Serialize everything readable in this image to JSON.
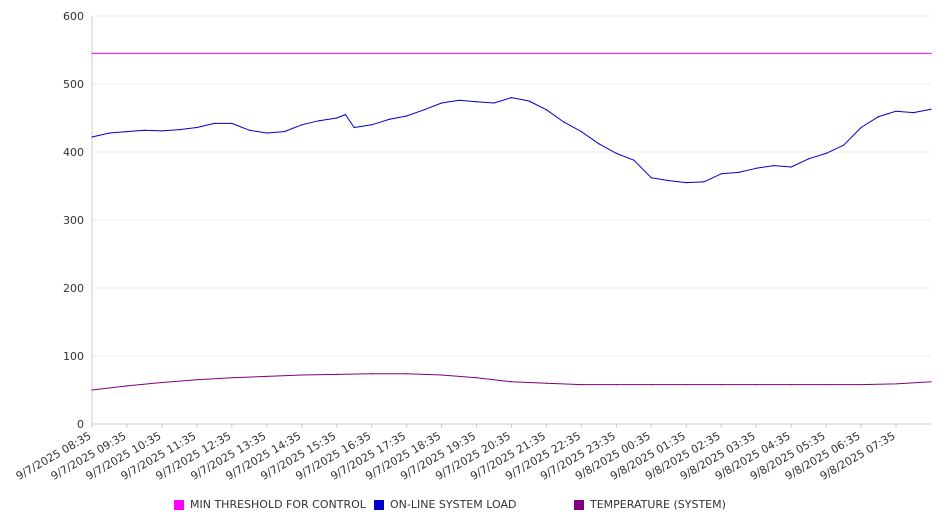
{
  "chart_data": {
    "type": "line",
    "title": "",
    "xlabel": "",
    "ylabel": "",
    "ylim": [
      0,
      600
    ],
    "y_ticks": [
      "0",
      "100",
      "200",
      "300",
      "400",
      "500",
      "600"
    ],
    "x_tick_labels": [
      "9/7/2025 08:35",
      "9/7/2025 09:35",
      "9/7/2025 10:35",
      "9/7/2025 11:35",
      "9/7/2025 12:35",
      "9/7/2025 13:35",
      "9/7/2025 14:35",
      "9/7/2025 15:35",
      "9/7/2025 16:35",
      "9/7/2025 17:35",
      "9/7/2025 18:35",
      "9/7/2025 19:35",
      "9/7/2025 20:35",
      "9/7/2025 21:35",
      "9/7/2025 22:35",
      "9/7/2025 23:35",
      "9/8/2025 00:35",
      "9/8/2025 01:35",
      "9/8/2025 02:35",
      "9/8/2025 03:35",
      "9/8/2025 04:35",
      "9/8/2025 05:35",
      "9/8/2025 06:35",
      "9/8/2025 07:35"
    ],
    "x_range": [
      "9/7/2025 08:35",
      "9/8/2025 08:35"
    ],
    "grid": true,
    "legend_position": "bottom",
    "series": [
      {
        "name": "MIN THRESHOLD FOR CONTROL",
        "color": "#ff00ff",
        "x": [
          "9/7/2025 08:35",
          "9/8/2025 08:35"
        ],
        "values": [
          545,
          545
        ]
      },
      {
        "name": "ON-LINE SYSTEM LOAD",
        "color": "#0000cc",
        "x": [
          "9/7/2025 08:35",
          "9/7/2025 09:05",
          "9/7/2025 09:35",
          "9/7/2025 10:05",
          "9/7/2025 10:35",
          "9/7/2025 11:05",
          "9/7/2025 11:35",
          "9/7/2025 12:05",
          "9/7/2025 12:35",
          "9/7/2025 13:05",
          "9/7/2025 13:35",
          "9/7/2025 14:05",
          "9/7/2025 14:35",
          "9/7/2025 15:05",
          "9/7/2025 15:35",
          "9/7/2025 15:50",
          "9/7/2025 16:05",
          "9/7/2025 16:35",
          "9/7/2025 17:05",
          "9/7/2025 17:35",
          "9/7/2025 18:05",
          "9/7/2025 18:35",
          "9/7/2025 19:05",
          "9/7/2025 19:35",
          "9/7/2025 20:05",
          "9/7/2025 20:35",
          "9/7/2025 21:05",
          "9/7/2025 21:35",
          "9/7/2025 22:05",
          "9/7/2025 22:35",
          "9/7/2025 23:05",
          "9/7/2025 23:35",
          "9/8/2025 00:05",
          "9/8/2025 00:35",
          "9/8/2025 01:05",
          "9/8/2025 01:35",
          "9/8/2025 02:05",
          "9/8/2025 02:35",
          "9/8/2025 03:05",
          "9/8/2025 03:35",
          "9/8/2025 04:05",
          "9/8/2025 04:35",
          "9/8/2025 05:05",
          "9/8/2025 05:35",
          "9/8/2025 06:05",
          "9/8/2025 06:35",
          "9/8/2025 07:05",
          "9/8/2025 07:35",
          "9/8/2025 08:05",
          "9/8/2025 08:35"
        ],
        "values": [
          422,
          428,
          430,
          432,
          431,
          433,
          436,
          442,
          442,
          432,
          428,
          430,
          440,
          446,
          450,
          455,
          436,
          440,
          448,
          453,
          462,
          472,
          476,
          474,
          472,
          480,
          475,
          462,
          444,
          430,
          412,
          398,
          388,
          362,
          358,
          355,
          356,
          368,
          370,
          376,
          380,
          378,
          390,
          398,
          410,
          436,
          452,
          460,
          458,
          463
        ]
      },
      {
        "name": "TEMPERATURE (SYSTEM)",
        "color": "#800080",
        "x": [
          "9/7/2025 08:35",
          "9/7/2025 09:35",
          "9/7/2025 10:35",
          "9/7/2025 11:35",
          "9/7/2025 12:35",
          "9/7/2025 13:35",
          "9/7/2025 14:35",
          "9/7/2025 15:35",
          "9/7/2025 16:35",
          "9/7/2025 17:35",
          "9/7/2025 18:35",
          "9/7/2025 19:35",
          "9/7/2025 20:35",
          "9/7/2025 21:35",
          "9/7/2025 22:35",
          "9/7/2025 23:35",
          "9/8/2025 00:35",
          "9/8/2025 01:35",
          "9/8/2025 02:35",
          "9/8/2025 03:35",
          "9/8/2025 04:35",
          "9/8/2025 05:35",
          "9/8/2025 06:35",
          "9/8/2025 07:35",
          "9/8/2025 08:35"
        ],
        "values": [
          50,
          56,
          61,
          65,
          68,
          70,
          72,
          73,
          74,
          74,
          72,
          68,
          62,
          60,
          58,
          58,
          58,
          58,
          58,
          58,
          58,
          58,
          58,
          59,
          62
        ]
      }
    ]
  }
}
